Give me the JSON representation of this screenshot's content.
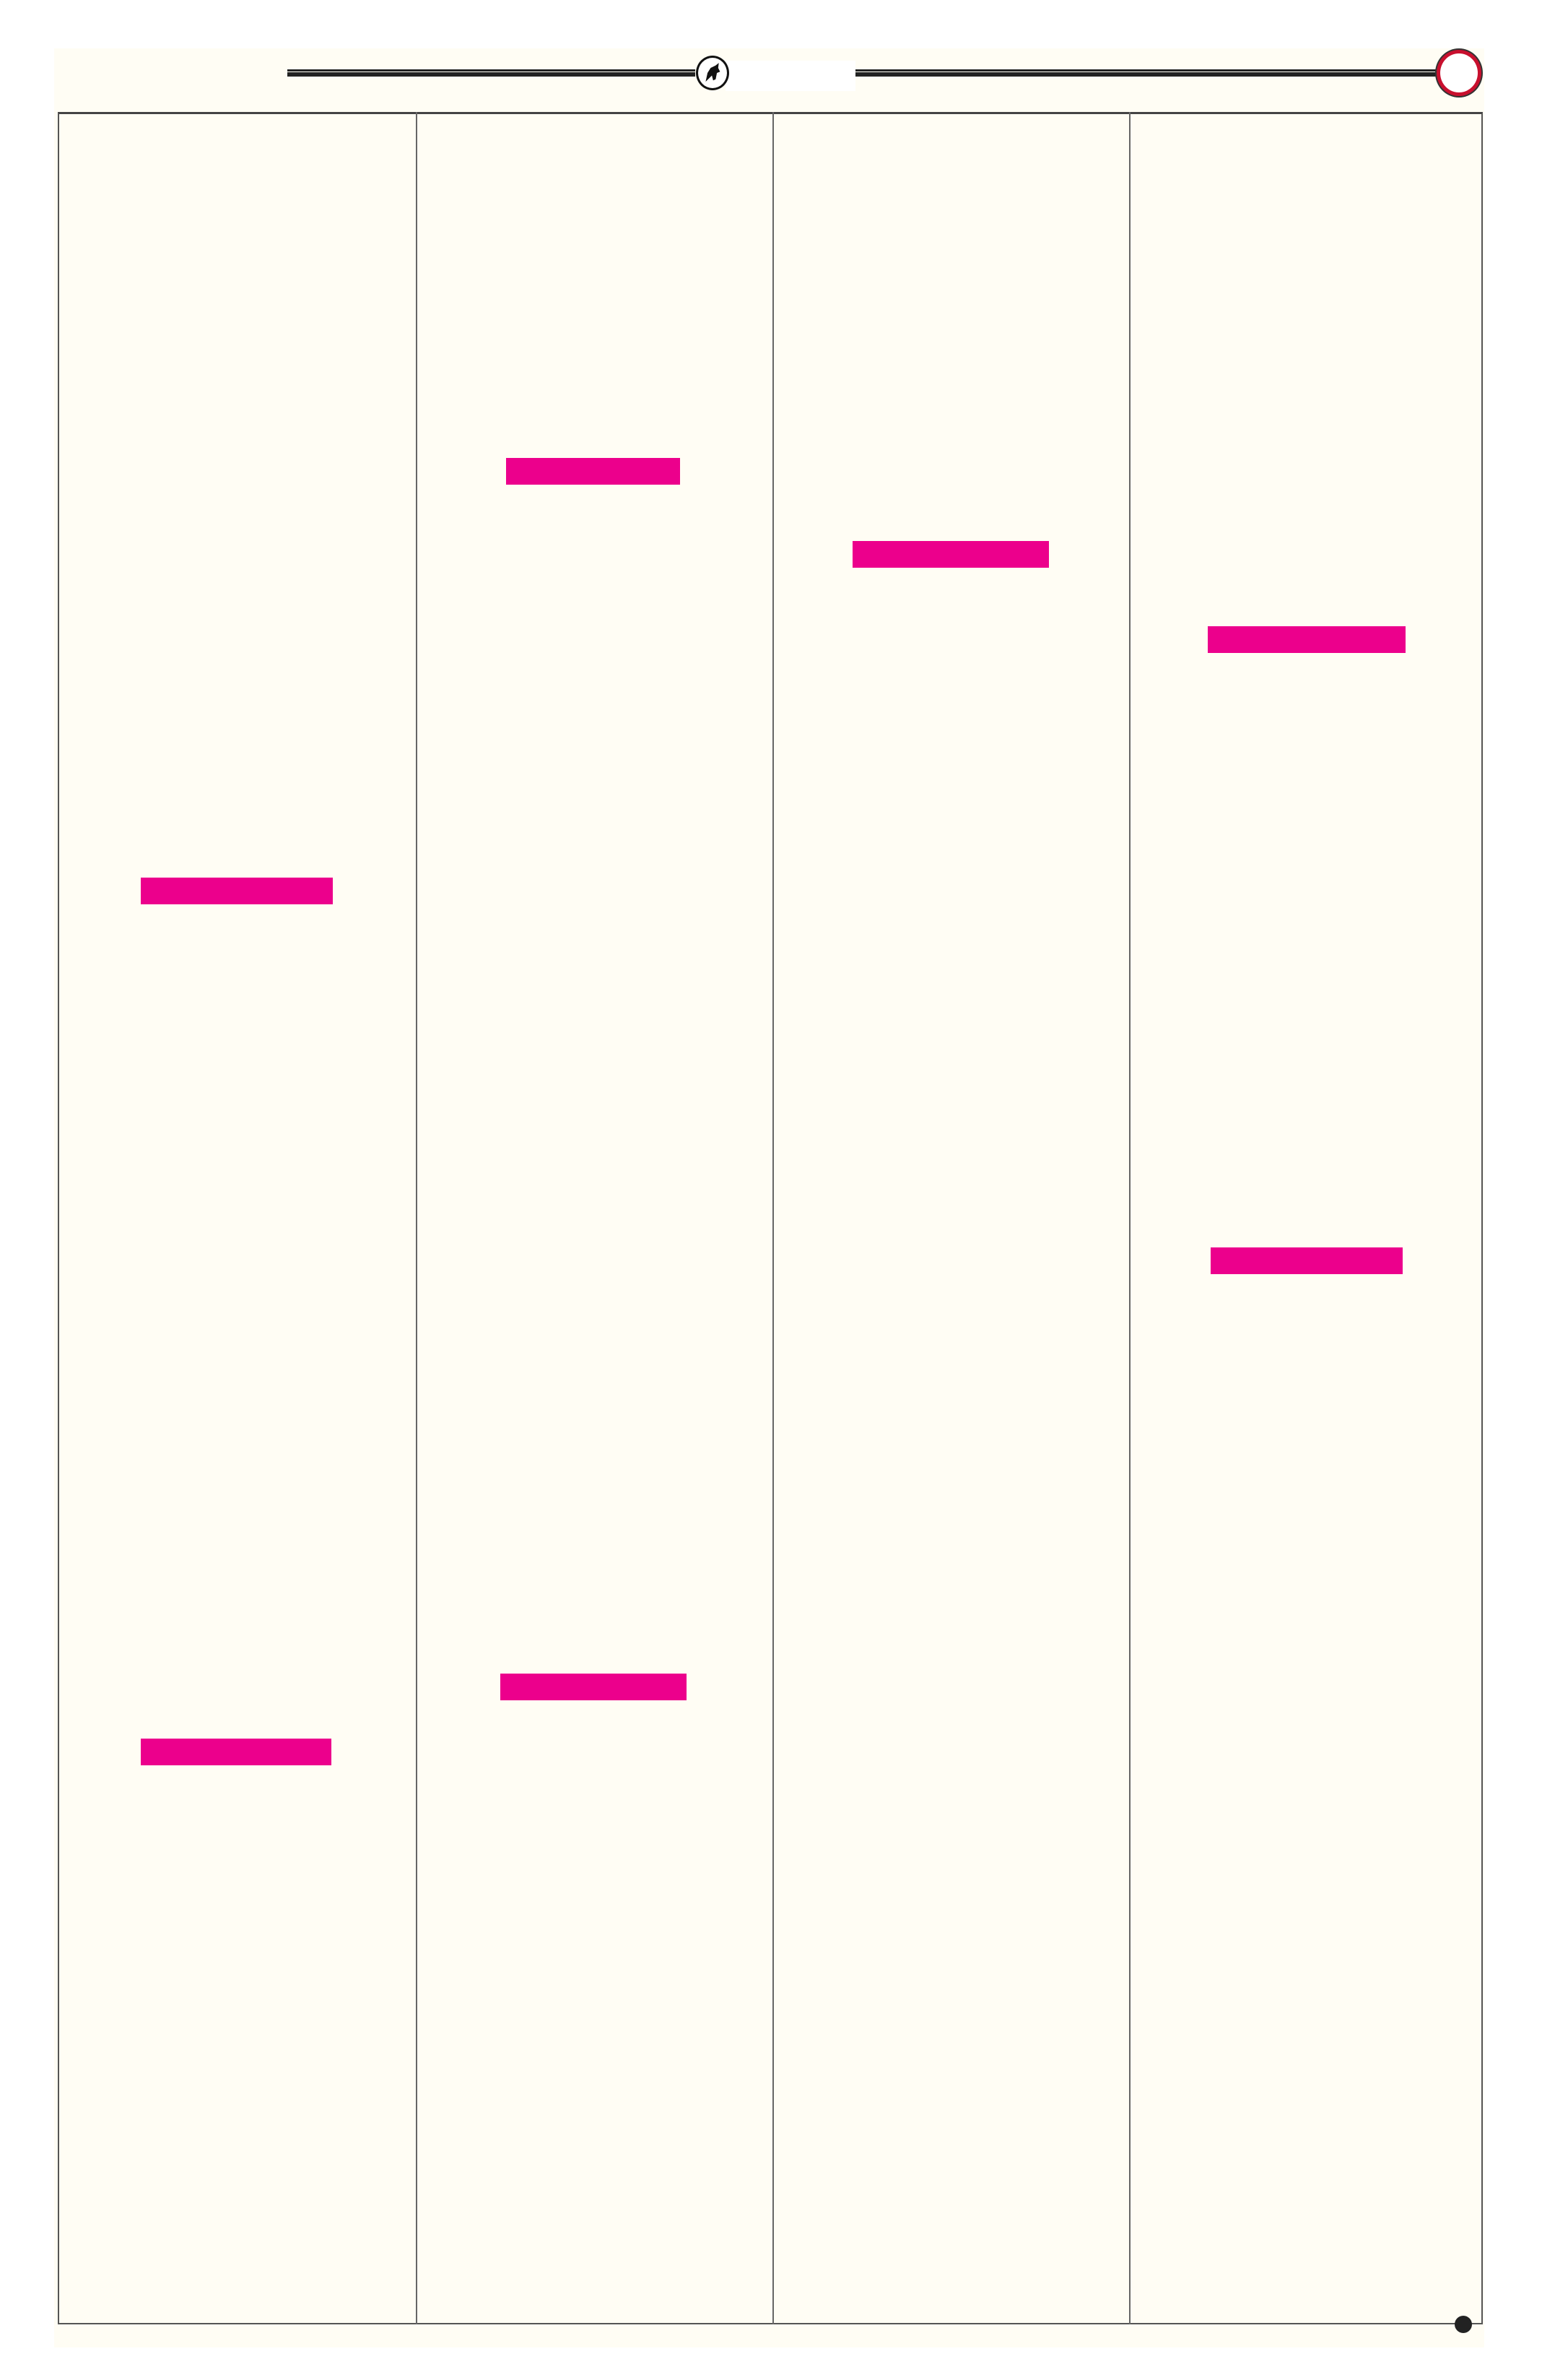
{
  "colors": {
    "page_background": "#fffdf4",
    "highlight_bar": "#ec008c",
    "rule": "#222222",
    "badge_ring": "#c8102e"
  },
  "header": {
    "emblem_icon": "horse-emblem-icon",
    "badge_icon": "red-ring-icon"
  },
  "columns": 4,
  "highlight_bars": [
    {
      "column": 1
    },
    {
      "column": 1
    },
    {
      "column": 2
    },
    {
      "column": 2
    },
    {
      "column": 3
    },
    {
      "column": 4
    },
    {
      "column": 4
    }
  ],
  "footer": {
    "marker_icon": "black-dot-icon"
  }
}
